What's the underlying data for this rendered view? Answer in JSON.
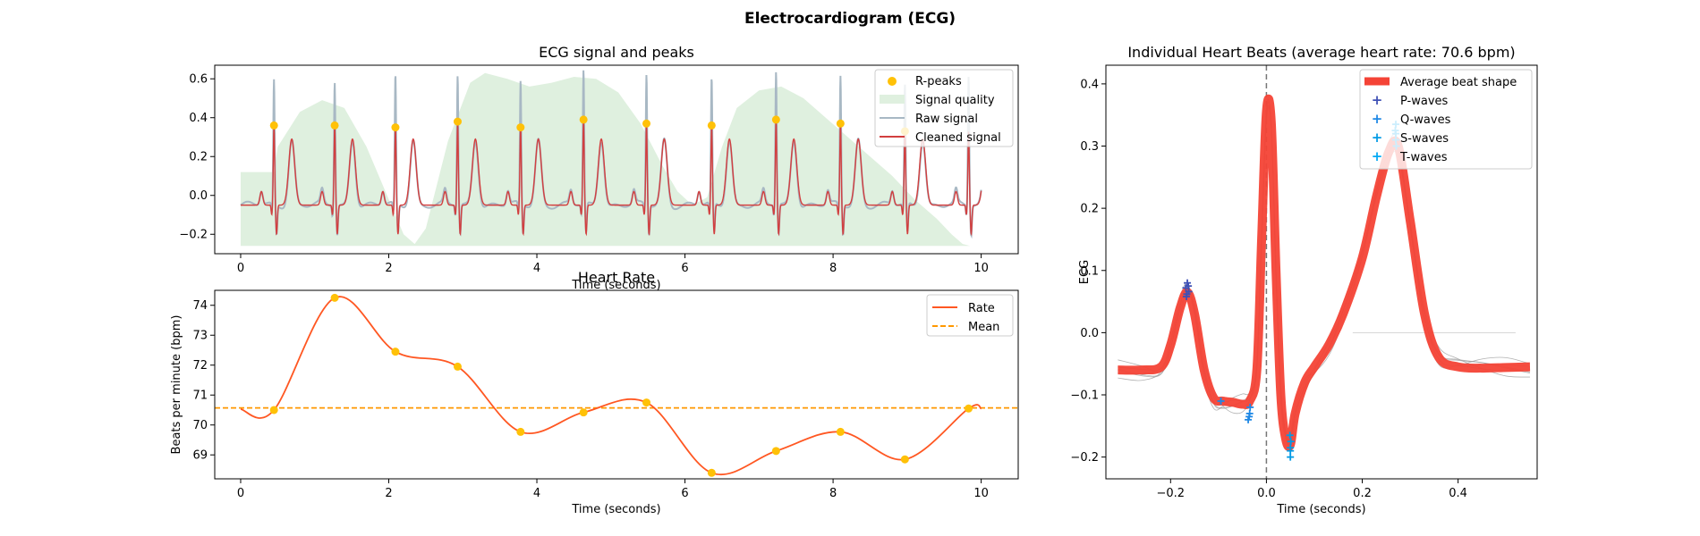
{
  "title": "Electrocardiogram (ECG)",
  "colors": {
    "rpeak": "#FFC107",
    "quality": "#DFF0DF",
    "raw": "#A8B8C4",
    "cleaned": "#D23F3F",
    "rate": "#FF5722",
    "mean": "#FF9800",
    "avg_beat": "#F44336",
    "pwave": "#3F51B5",
    "qwave": "#1E88E5",
    "swave": "#039BE5",
    "twave": "#03A9F4",
    "individual": "#9E9E9E"
  },
  "chart_data": [
    {
      "id": "signal",
      "type": "line",
      "title": "ECG signal and peaks",
      "xlabel": "Time (seconds)",
      "ylabel": "",
      "xlim": [
        -0.35,
        10.5
      ],
      "ylim": [
        -0.3,
        0.67
      ],
      "xticks": [
        0,
        2,
        4,
        6,
        8,
        10
      ],
      "yticks": [
        -0.2,
        0.0,
        0.2,
        0.4,
        0.6
      ],
      "xtick_labels": [
        "0",
        "2",
        "4",
        "6",
        "8",
        "10"
      ],
      "ytick_labels": [
        "−0.2",
        "0.0",
        "0.2",
        "0.4",
        "0.6"
      ],
      "legend_position": "upper right",
      "legend": [
        "R-peaks",
        "Signal quality",
        "Raw signal",
        "Cleaned signal"
      ],
      "rpeak_times": [
        0.45,
        1.27,
        2.09,
        2.93,
        3.78,
        4.63,
        5.48,
        6.36,
        7.23,
        8.1,
        8.97
      ],
      "rpeak_values": [
        0.36,
        0.36,
        0.35,
        0.38,
        0.35,
        0.39,
        0.37,
        0.36,
        0.39,
        0.37,
        0.33
      ],
      "quality": {
        "x": [
          0,
          0.45,
          0.5,
          0.8,
          1.1,
          1.4,
          1.7,
          2.0,
          2.2,
          2.35,
          2.5,
          2.8,
          3.1,
          3.3,
          3.6,
          3.9,
          4.2,
          4.5,
          4.8,
          5.1,
          5.4,
          5.7,
          5.9,
          6.1,
          6.3,
          6.5,
          6.7,
          7.0,
          7.3,
          7.6,
          7.9,
          8.2,
          8.5,
          8.8,
          9.1,
          9.4,
          9.6,
          9.75,
          9.85
        ],
        "y": [
          0.12,
          0.12,
          0.25,
          0.43,
          0.49,
          0.45,
          0.25,
          -0.02,
          -0.2,
          -0.25,
          -0.17,
          0.28,
          0.58,
          0.63,
          0.6,
          0.56,
          0.58,
          0.61,
          0.6,
          0.53,
          0.37,
          0.15,
          0.02,
          -0.05,
          -0.01,
          0.25,
          0.45,
          0.54,
          0.56,
          0.5,
          0.4,
          0.3,
          0.2,
          0.1,
          -0.02,
          -0.12,
          -0.2,
          -0.25,
          -0.26
        ],
        "base": -0.26
      },
      "raw_peak_heights": [
        0.59,
        0.59,
        0.61,
        0.62,
        0.58,
        0.64,
        0.62,
        0.59,
        0.64,
        0.61,
        0.56,
        0.62
      ]
    },
    {
      "id": "rate",
      "type": "line",
      "title": "Heart Rate",
      "xlabel": "Time (seconds)",
      "ylabel": "Beats per minute (bpm)",
      "xlim": [
        -0.35,
        10.5
      ],
      "ylim": [
        68.2,
        74.5
      ],
      "xticks": [
        0,
        2,
        4,
        6,
        8,
        10
      ],
      "yticks": [
        69,
        70,
        71,
        72,
        73,
        74
      ],
      "xtick_labels": [
        "0",
        "2",
        "4",
        "6",
        "8",
        "10"
      ],
      "ytick_labels": [
        "69",
        "70",
        "71",
        "72",
        "73",
        "74"
      ],
      "legend_position": "upper right",
      "legend": [
        "Rate",
        "Mean"
      ],
      "x": [
        0.45,
        1.27,
        2.09,
        2.93,
        3.78,
        4.63,
        5.48,
        6.36,
        7.23,
        8.1,
        8.97,
        9.83
      ],
      "y": [
        70.5,
        74.25,
        72.45,
        71.95,
        69.77,
        70.42,
        70.75,
        68.4,
        69.13,
        69.77,
        68.85,
        70.55
      ],
      "curve_start": [
        0,
        70.53
      ],
      "curve_end": [
        10,
        70.55
      ],
      "mean": 70.57
    },
    {
      "id": "beats",
      "type": "line",
      "title": "Individual Heart Beats (average heart rate: 70.6 bpm)",
      "xlabel": "Time (seconds)",
      "ylabel": "ECG",
      "xlim": [
        -0.335,
        0.565
      ],
      "ylim": [
        -0.235,
        0.43
      ],
      "xticks": [
        -0.2,
        0.0,
        0.2,
        0.4
      ],
      "yticks": [
        -0.2,
        -0.1,
        0.0,
        0.1,
        0.2,
        0.3,
        0.4
      ],
      "xtick_labels": [
        "−0.2",
        "0.0",
        "0.2",
        "0.4"
      ],
      "ytick_labels": [
        "−0.2",
        "−0.1",
        "0.0",
        "0.1",
        "0.2",
        "0.3",
        "0.4"
      ],
      "legend_position": "upper right",
      "legend": [
        "Average beat shape",
        "P-waves",
        "Q-waves",
        "S-waves",
        "T-waves"
      ],
      "average": {
        "x": [
          -0.31,
          -0.26,
          -0.22,
          -0.2,
          -0.18,
          -0.165,
          -0.15,
          -0.13,
          -0.11,
          -0.09,
          -0.07,
          -0.05,
          -0.035,
          -0.02,
          -0.01,
          0.0,
          0.01,
          0.02,
          0.03,
          0.04,
          0.05,
          0.06,
          0.08,
          0.1,
          0.13,
          0.16,
          0.2,
          0.23,
          0.255,
          0.275,
          0.3,
          0.33,
          0.36,
          0.4,
          0.45,
          0.5,
          0.55
        ],
        "y": [
          -0.06,
          -0.06,
          -0.055,
          -0.02,
          0.04,
          0.065,
          0.03,
          -0.06,
          -0.105,
          -0.11,
          -0.112,
          -0.115,
          -0.11,
          -0.06,
          0.15,
          0.355,
          0.34,
          0.1,
          -0.1,
          -0.17,
          -0.18,
          -0.13,
          -0.08,
          -0.055,
          -0.02,
          0.03,
          0.12,
          0.22,
          0.29,
          0.3,
          0.18,
          0.03,
          -0.04,
          -0.055,
          -0.057,
          -0.056,
          -0.055
        ]
      },
      "individual_offsets": [
        -0.012,
        -0.006,
        0.005,
        0.011,
        0.017,
        -0.017
      ],
      "pwaves": {
        "x": [
          -0.165,
          -0.168,
          -0.162,
          -0.166,
          -0.163,
          -0.167
        ],
        "y": [
          0.08,
          0.072,
          0.066,
          0.062,
          0.075,
          0.058
        ]
      },
      "qwaves": {
        "x": [
          -0.095,
          -0.038,
          -0.035,
          -0.034,
          -0.036
        ],
        "y": [
          -0.11,
          -0.14,
          -0.13,
          -0.12,
          -0.135
        ]
      },
      "swaves": {
        "x": [
          0.05,
          0.05,
          0.051,
          0.049,
          0.05
        ],
        "y": [
          -0.2,
          -0.19,
          -0.175,
          -0.165,
          -0.185
        ]
      },
      "twaves": {
        "x": [
          0.27,
          0.27,
          0.27,
          0.271,
          0.269
        ],
        "y": [
          0.335,
          0.32,
          0.31,
          0.3,
          0.325
        ]
      },
      "zero_ref": {
        "x": [
          0.18,
          0.52
        ],
        "y": [
          0.0,
          0.0
        ]
      }
    }
  ]
}
